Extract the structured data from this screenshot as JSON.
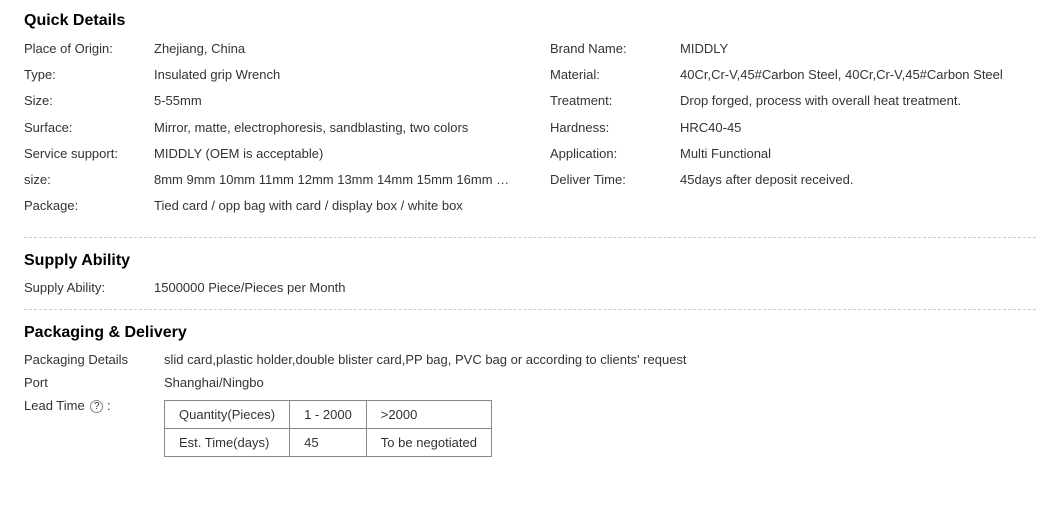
{
  "sections": {
    "quickDetails": {
      "title": "Quick Details",
      "left": [
        {
          "label": "Place of Origin:",
          "value": "Zhejiang, China"
        },
        {
          "label": "Type:",
          "value": "Insulated grip Wrench"
        },
        {
          "label": "Size:",
          "value": "5-55mm"
        },
        {
          "label": "Surface:",
          "value": "Mirror, matte, electrophoresis, sandblasting, two colors"
        },
        {
          "label": "Service support:",
          "value": "MIDDLY (OEM is acceptable)"
        },
        {
          "label": "size:",
          "value": "8mm 9mm 10mm 11mm 12mm 13mm 14mm 15mm 16mm …"
        },
        {
          "label": "Package:",
          "value": "Tied card / opp bag with card / display box / white box"
        }
      ],
      "right": [
        {
          "label": "Brand Name:",
          "value": "MIDDLY"
        },
        {
          "label": "Material:",
          "value": "40Cr,Cr-V,45#Carbon Steel, 40Cr,Cr-V,45#Carbon Steel"
        },
        {
          "label": "Treatment:",
          "value": "Drop forged, process with overall heat treatment."
        },
        {
          "label": "Hardness:",
          "value": "HRC40-45"
        },
        {
          "label": "Application:",
          "value": "Multi Functional"
        },
        {
          "label": "Deliver Time:",
          "value": "45days after deposit received."
        }
      ]
    },
    "supplyAbility": {
      "title": "Supply Ability",
      "label": "Supply Ability:",
      "value": "1500000 Piece/Pieces per Month"
    },
    "packagingDelivery": {
      "title": "Packaging & Delivery",
      "rows": [
        {
          "label": "Packaging Details",
          "value": "slid card,plastic holder,double blister card,PP bag, PVC bag or according to clients' request"
        },
        {
          "label": "Port",
          "value": "Shanghai/Ningbo"
        }
      ],
      "leadTimeLabel": "Lead Time",
      "helpGlyph": "?",
      "leadTable": {
        "header": [
          "Quantity(Pieces)",
          "1 - 2000",
          ">2000"
        ],
        "row": [
          "Est. Time(days)",
          "45",
          "To be negotiated"
        ]
      }
    }
  },
  "style": {
    "titleFontSize": 16,
    "bodyFontSize": 13,
    "textColor": "#333333",
    "dividerColor": "#cccccc",
    "tableBorderColor": "#888888",
    "background": "#ffffff",
    "labelWidthLeft": 130,
    "labelWidthPD": 140
  }
}
